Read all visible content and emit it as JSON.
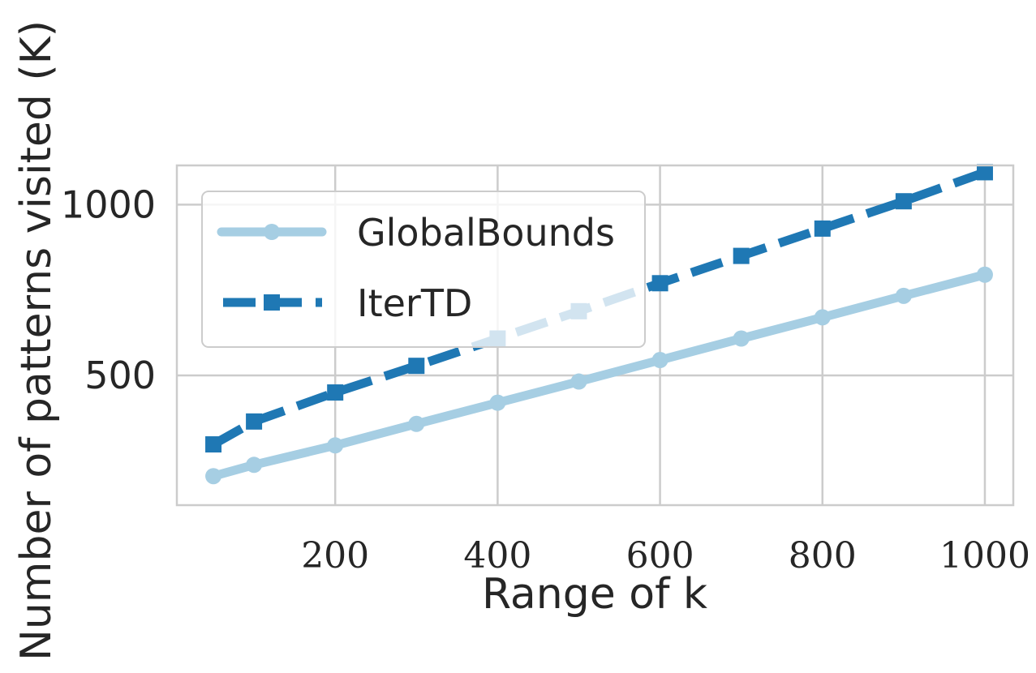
{
  "chart_data": {
    "type": "line",
    "title": "",
    "xlabel": "Range of k",
    "ylabel": "Number of patterns visited (K)",
    "xlim": [
      5,
      1035
    ],
    "ylim": [
      120,
      1115
    ],
    "xticks": [
      200,
      400,
      600,
      800,
      1000
    ],
    "yticks": [
      500,
      1000
    ],
    "grid": true,
    "legend_position": "upper-left",
    "x": [
      50,
      100,
      200,
      300,
      400,
      500,
      600,
      700,
      800,
      900,
      1000
    ],
    "series": [
      {
        "name": "GlobalBounds",
        "color": "#a6cee3",
        "line_style": "solid",
        "marker": "circle",
        "values": [
          205,
          238,
          295,
          358,
          420,
          482,
          545,
          608,
          670,
          733,
          795
        ]
      },
      {
        "name": "IterTD",
        "color": "#1f78b4",
        "line_style": "dashed",
        "marker": "square",
        "values": [
          298,
          365,
          450,
          528,
          608,
          688,
          770,
          850,
          930,
          1010,
          1095
        ]
      }
    ]
  }
}
